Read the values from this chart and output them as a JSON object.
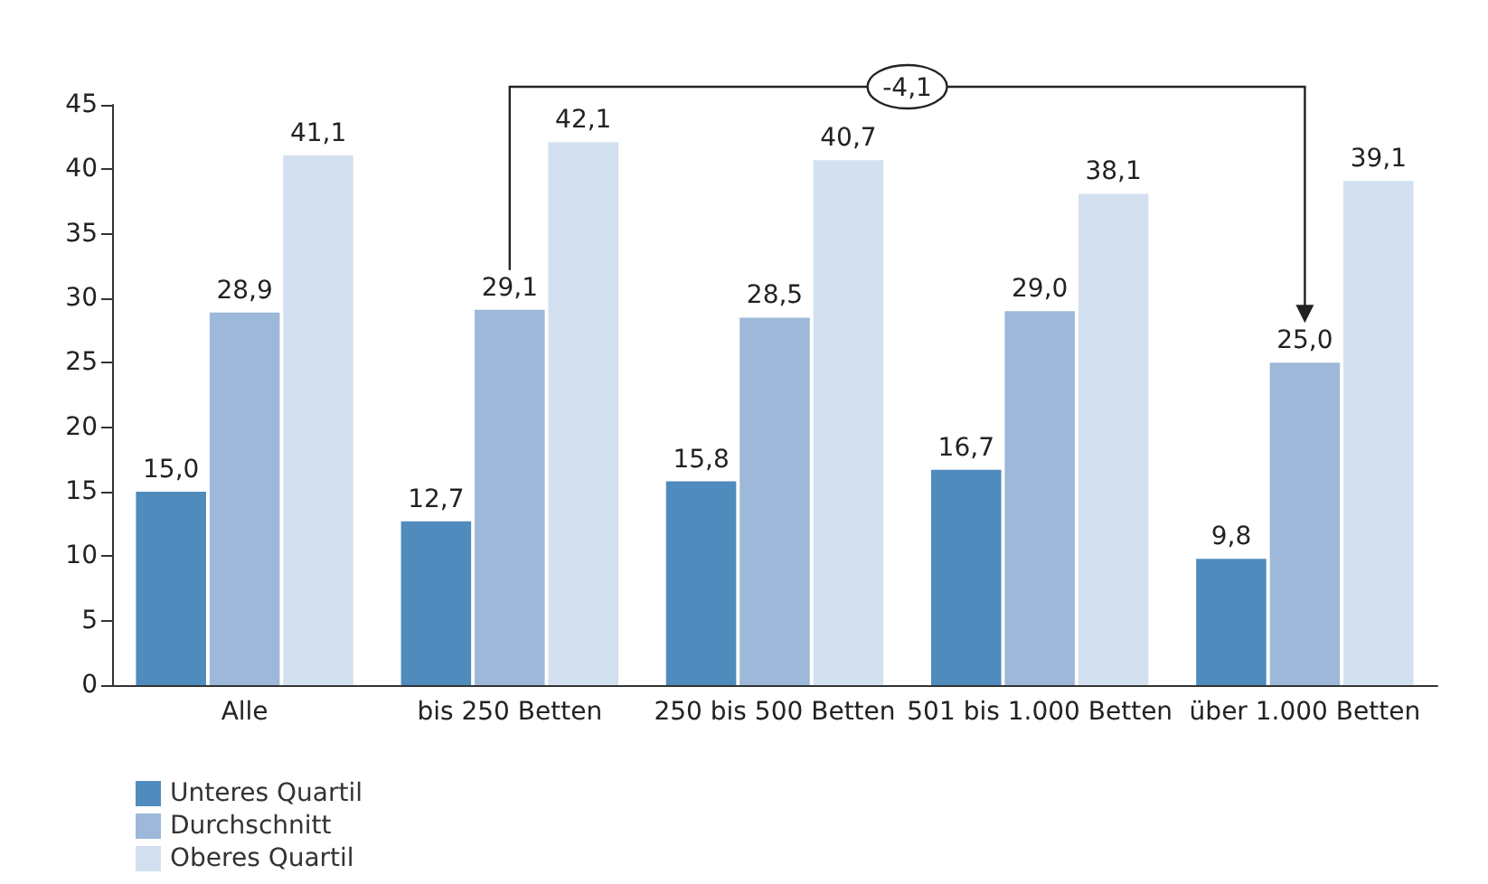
{
  "chart_data": {
    "type": "bar",
    "categories": [
      "Alle",
      "bis 250 Betten",
      "250 bis 500 Betten",
      "501 bis 1.000 Betten",
      "über 1.000 Betten"
    ],
    "series": [
      {
        "name": "Unteres Quartil",
        "color": "#4f8bbd",
        "values": [
          15.0,
          12.7,
          15.8,
          16.7,
          9.8
        ],
        "value_labels": [
          "15,0",
          "12,7",
          "15,8",
          "16,7",
          "9,8"
        ]
      },
      {
        "name": "Durchschnitt",
        "color": "#9db8d8",
        "values": [
          28.9,
          29.1,
          28.5,
          29.0,
          25.0
        ],
        "value_labels": [
          "28,9",
          "29,1",
          "28,5",
          "29,0",
          "25,0"
        ]
      },
      {
        "name": "Oberes Quartil",
        "color": "#d3e0ef",
        "values": [
          41.1,
          42.1,
          40.7,
          38.1,
          39.1
        ],
        "value_labels": [
          "41,1",
          "42,1",
          "40,7",
          "38,1",
          "39,1"
        ]
      }
    ],
    "ylim": [
      0,
      45
    ],
    "yticks": [
      0,
      5,
      10,
      15,
      20,
      25,
      30,
      35,
      40,
      45
    ],
    "grid": false,
    "legend": "bottom left",
    "annotations": [
      "-4,1"
    ]
  }
}
